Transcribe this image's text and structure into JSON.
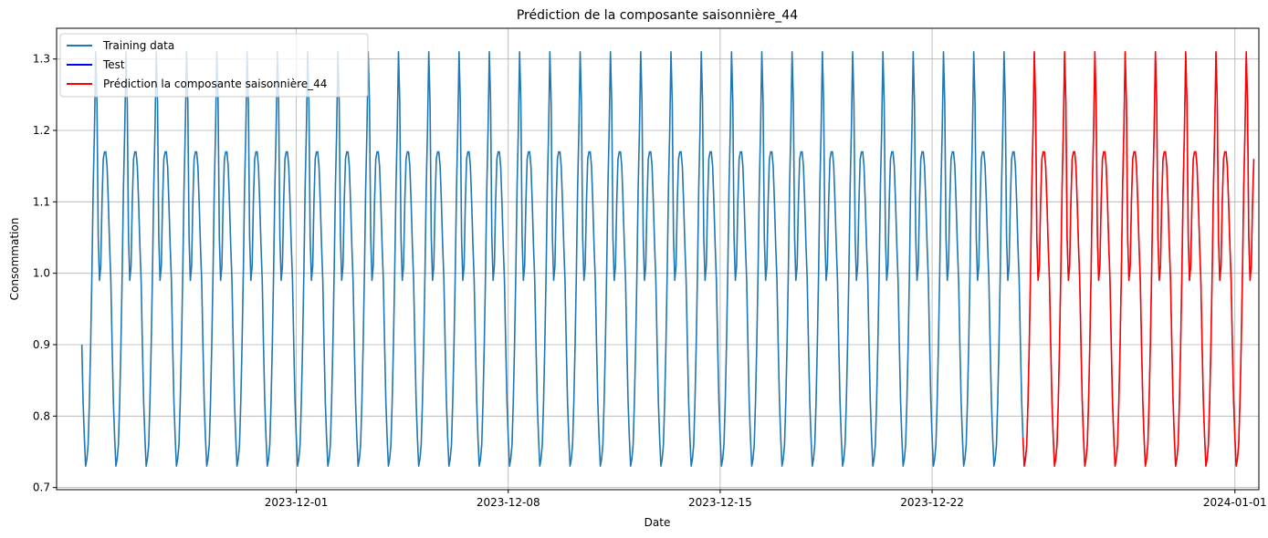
{
  "chart_data": {
    "type": "line",
    "title": "Prédiction de la composante saisonnière_44",
    "xlabel": "Date",
    "ylabel": "Consommation",
    "x_tick_labels": [
      "2023-12-01",
      "2023-12-08",
      "2023-12-15",
      "2023-12-22",
      "2024-01-01"
    ],
    "x_tick_dates": [
      "2023-12-01",
      "2023-12-08",
      "2023-12-15",
      "2023-12-22",
      "2024-01-01"
    ],
    "y_ticks": [
      0.7,
      0.8,
      0.9,
      1.0,
      1.1,
      1.2,
      1.3
    ],
    "y_tick_labels": [
      "0.7",
      "0.8",
      "0.9",
      "1.0",
      "1.1",
      "1.2",
      "1.3"
    ],
    "xlim": [
      "2023-11-23T02:00",
      "2024-01-01T19:00"
    ],
    "ylim": [
      0.697,
      1.343
    ],
    "grid": true,
    "legend_position": "top-left",
    "seasonal_period_hours": 24,
    "daily_profile_hours": [
      0,
      1,
      2,
      3,
      4,
      5,
      6,
      7,
      8,
      9,
      10,
      11,
      12,
      13,
      14,
      15,
      16,
      17,
      18,
      19,
      20,
      21,
      22,
      23
    ],
    "daily_profile_values": [
      0.77,
      0.73,
      0.74,
      0.76,
      0.82,
      0.9,
      1.0,
      1.12,
      1.2,
      1.31,
      1.24,
      1.05,
      0.99,
      1.01,
      1.1,
      1.16,
      1.17,
      1.17,
      1.15,
      1.1,
      1.04,
      0.99,
      0.9,
      0.82
    ],
    "series": [
      {
        "name": "Training data",
        "color": "#1f77b4",
        "start": "2023-11-23T22:00",
        "end": "2023-12-25T00:00"
      },
      {
        "name": "Test",
        "color": "#0000ff",
        "start": "2023-12-25T00:00",
        "end": "2024-01-01T15:00"
      },
      {
        "name": "Prédiction la composante saisonnière_44",
        "color": "#ff0000",
        "start": "2023-12-25T00:00",
        "end": "2024-01-01T15:00"
      }
    ]
  }
}
